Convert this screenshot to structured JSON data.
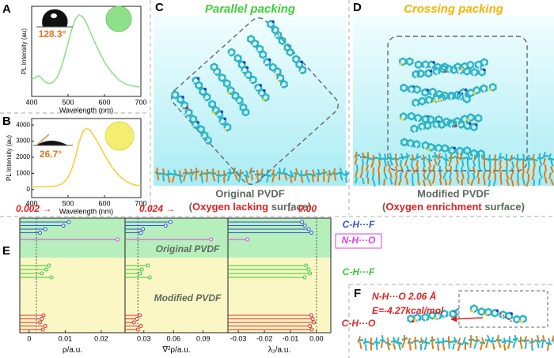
{
  "panels": {
    "A": {
      "label": "A",
      "type": "line",
      "color": "#8fe08a",
      "contact_angle": "128.3°",
      "ylabel": "PL Intensity (au)",
      "xlabel": "Wavelength (nm)",
      "x": [
        400,
        410,
        420,
        430,
        440,
        450,
        460,
        470,
        480,
        490,
        500,
        510,
        520,
        530,
        540,
        550,
        560,
        580,
        600,
        620,
        640,
        660,
        680,
        700
      ],
      "values": [
        0.2,
        0.22,
        0.24,
        0.2,
        0.16,
        0.15,
        0.17,
        0.22,
        0.32,
        0.46,
        0.62,
        0.78,
        0.9,
        0.95,
        0.93,
        0.86,
        0.76,
        0.57,
        0.4,
        0.28,
        0.19,
        0.14,
        0.12,
        0.11
      ],
      "xlim": [
        400,
        700
      ],
      "xticks": [
        400,
        500,
        600,
        700
      ],
      "ylim": [
        0,
        1.05
      ]
    },
    "B": {
      "label": "B",
      "type": "line",
      "color": "#f3d23a",
      "contact_angle": "26.7°",
      "ylabel": "PL Intensity (au)",
      "xlabel": "Wavelength (nm)",
      "x": [
        400,
        410,
        420,
        430,
        440,
        450,
        460,
        470,
        480,
        490,
        500,
        510,
        520,
        530,
        540,
        550,
        560,
        580,
        600,
        620,
        640,
        660,
        680,
        700
      ],
      "values": [
        150,
        160,
        170,
        170,
        170,
        180,
        200,
        240,
        320,
        480,
        760,
        1250,
        2000,
        2900,
        3550,
        3800,
        3700,
        3000,
        2150,
        1400,
        850,
        500,
        300,
        220
      ],
      "xlim": [
        400,
        700
      ],
      "xticks": [
        400,
        500,
        600,
        700
      ],
      "ylim": [
        -500,
        4400
      ],
      "yticks": [
        0,
        1000,
        2000,
        3000,
        4000
      ]
    },
    "C": {
      "label": "C",
      "title": "Parallel packing",
      "caption": "Original PVDF",
      "subcaption": [
        "(",
        "Oxygen lacking",
        " surface)"
      ]
    },
    "D": {
      "label": "D",
      "title": "Crossing packing",
      "caption": "Modified PVDF",
      "subcaption": [
        "(",
        "Oxygen enrichment",
        " surface)"
      ]
    },
    "E": {
      "label": "E",
      "group_labels": [
        "Original PVDF",
        "Modified PVDF"
      ],
      "subplots": [
        {
          "xlabel": "ρ/a.u.",
          "xlim": [
            -0.0026,
            0.0266
          ],
          "xticks": [
            0,
            0.01,
            0.02
          ],
          "reference": 0.002
        },
        {
          "xlabel": "∇²ρ/a.u.",
          "xlim": [
            0.011,
            0.115
          ],
          "xticks": [
            0.03,
            0.06,
            0.09
          ],
          "reference": 0.024
        },
        {
          "xlabel": "λ₂/a.u.",
          "xlim": [
            -0.034,
            0.0055
          ],
          "xticks": [
            -0.03,
            -0.02,
            -0.01,
            {
              "value": 0,
              "label": "0.00"
            }
          ],
          "reference": {
            "value": 0,
            "label": "0.00"
          }
        }
      ],
      "series": [
        {
          "name": "C-H···F",
          "color": "#3050d8",
          "values": [
            [
              0.011,
              0.0095,
              0.0045,
              0.003
            ],
            [
              0.057,
              0.052,
              0.029,
              0.027
            ],
            [
              -0.0055,
              -0.0045,
              -0.003,
              -0.002
            ]
          ]
        },
        {
          "name": "N-H···O",
          "color": "#e040e0",
          "values": [
            [
              0.0245
            ],
            [
              0.098
            ],
            [
              -0.0265
            ]
          ]
        },
        {
          "name": "C-H···F",
          "color": "#30c830",
          "values": [
            [
              0.0055,
              0.0048,
              0.0035,
              0.0062
            ],
            [
              0.034,
              0.028,
              0.026,
              0.036
            ],
            [
              -0.004,
              -0.003,
              -0.0025,
              -0.0045
            ]
          ]
        },
        {
          "name": "C-H···O",
          "color": "#e02828",
          "values": [
            [
              0.004,
              0.0035,
              0.003,
              0.0045,
              0.0038
            ],
            [
              0.026,
              0.023,
              0.02,
              0.027,
              0.024
            ],
            [
              -0.002,
              -0.0015,
              -0.001,
              -0.0025,
              -0.0018
            ]
          ]
        }
      ]
    },
    "F": {
      "label": "F",
      "bond": "N-H···O 2.06 Å",
      "energy": "E=-4.27kcal/mol"
    }
  }
}
